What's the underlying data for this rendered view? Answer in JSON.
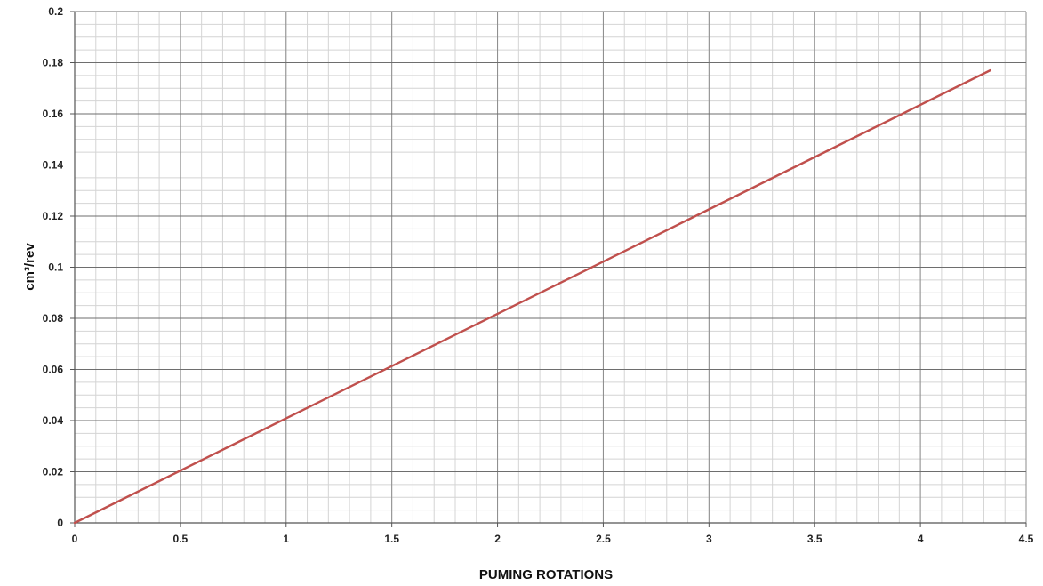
{
  "chart_data": {
    "type": "line",
    "title": "",
    "xlabel": "PUMING ROTATIONS",
    "ylabel": "cm³/rev",
    "xlim": [
      0,
      4.5
    ],
    "ylim": [
      0,
      0.2
    ],
    "x_ticks": [
      "0",
      "0.5",
      "1",
      "1.5",
      "2",
      "2.5",
      "3",
      "3.5",
      "4",
      "4.5"
    ],
    "y_ticks": [
      "0",
      "0.02",
      "0.04",
      "0.06",
      "0.08",
      "0.1",
      "0.12",
      "0.14",
      "0.16",
      "0.18",
      "0.2"
    ],
    "grid": true,
    "legend": "none",
    "series": [
      {
        "color": "#c0504d",
        "points": [
          {
            "x": 0,
            "y": 0
          },
          {
            "x": 4.33,
            "y": 0.177
          }
        ]
      }
    ]
  }
}
